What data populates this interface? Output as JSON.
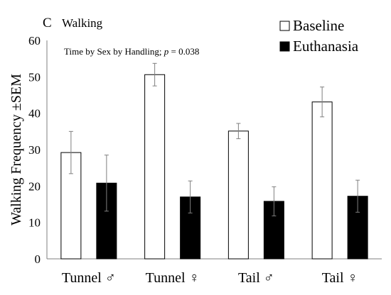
{
  "chart_data": {
    "type": "bar",
    "panel_letter": "C",
    "title": "Walking",
    "annotation": {
      "prefix": "Time by Sex by Handling; ",
      "p_symbol": "p",
      "suffix": " = 0.038"
    },
    "ylabel": "Walking Frequency ±SEM",
    "xlabel": "",
    "ylim": [
      0,
      60
    ],
    "yticks": [
      "0",
      "10",
      "20",
      "30",
      "40",
      "50",
      "60"
    ],
    "categories": [
      "Tunnel ♂",
      "Tunnel ♀",
      "Tail ♂",
      "Tail ♀"
    ],
    "series": [
      {
        "name": "Baseline",
        "fill": "#ffffff",
        "values": [
          29.2,
          50.6,
          35.1,
          43.1
        ],
        "errors": [
          5.8,
          3.1,
          2.1,
          4.1
        ]
      },
      {
        "name": "Euthanasia",
        "fill": "#000000",
        "values": [
          20.8,
          17.0,
          15.8,
          17.2
        ],
        "errors": [
          7.7,
          4.4,
          4.0,
          4.4
        ]
      }
    ],
    "legend_position": "top-right",
    "grid": false
  }
}
